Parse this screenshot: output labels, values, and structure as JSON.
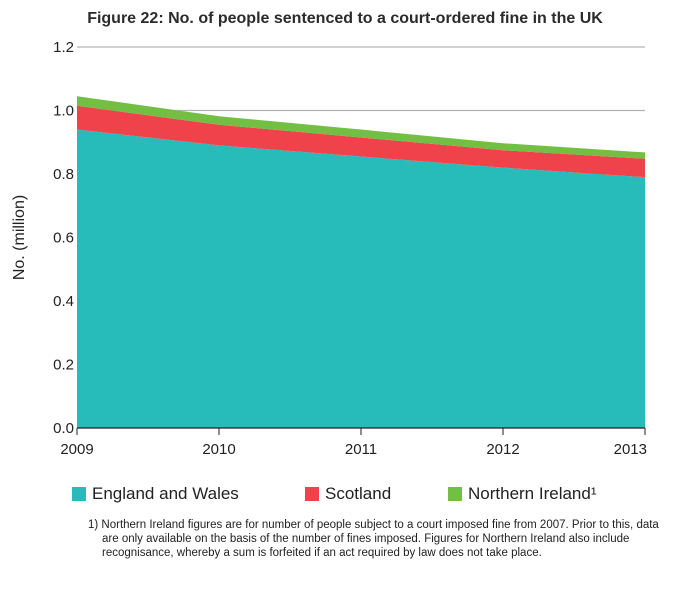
{
  "title": "Figure 22: No. of people sentenced to a court-ordered fine in the UK",
  "colors": {
    "england_wales": "#27bbb9",
    "scotland": "#f0424a",
    "northern_ireland": "#72bf44",
    "gridline": "#b3b3b3"
  },
  "chart_data": {
    "type": "area",
    "stacked": true,
    "x": [
      2009,
      2010,
      2011,
      2012,
      2013
    ],
    "x_tick_labels": [
      "2009",
      "2010",
      "2011",
      "2012",
      "2013"
    ],
    "ylabel": "No. (million)",
    "ylim": [
      0,
      1.2
    ],
    "y_ticks": [
      0.0,
      0.2,
      0.4,
      0.6,
      0.8,
      1.0,
      1.2
    ],
    "y_tick_labels": [
      "0.0",
      "0.2",
      "0.4",
      "0.6",
      "0.8",
      "1.0",
      "1.2"
    ],
    "grid": "horizontal",
    "series": [
      {
        "name": "England and Wales",
        "values": [
          0.94,
          0.89,
          0.855,
          0.82,
          0.79
        ]
      },
      {
        "name": "Scotland",
        "values": [
          0.075,
          0.065,
          0.06,
          0.055,
          0.058
        ]
      },
      {
        "name": "Northern Ireland",
        "values": [
          0.03,
          0.027,
          0.025,
          0.022,
          0.02
        ]
      }
    ]
  },
  "legend": [
    {
      "label": "England and Wales"
    },
    {
      "label": "Scotland"
    },
    {
      "label": "Northern Ireland¹"
    }
  ],
  "footnote": "1) Northern Ireland figures are for number of people subject to a court imposed fine from 2007. Prior to this, data are only available on the basis of the number of fines imposed. Figures for Northern Ireland also include recognisance, whereby a sum is forfeited if an act required by law does not take place."
}
